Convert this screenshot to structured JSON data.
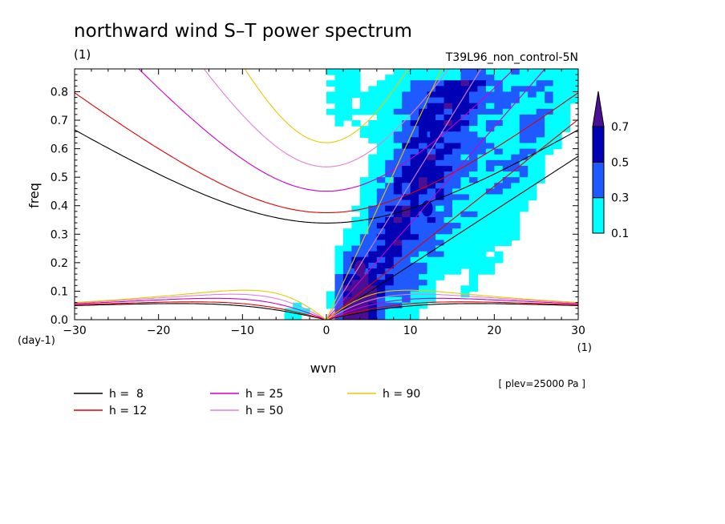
{
  "chart_data": {
    "type": "contour",
    "title": "northward wind S–T power spectrum",
    "units_label": "(1)",
    "experiment": "T39L96_non_control-5N",
    "xlabel": "wvn",
    "ylabel": "freq",
    "y_units": "(day-1)",
    "x_units": "(1)",
    "note": "[ plev=25000 Pa ]",
    "xlim": [
      -30,
      30
    ],
    "ylim": [
      0,
      0.88
    ],
    "x_ticks": [
      "−30",
      "−20",
      "−10",
      "0",
      "10",
      "20",
      "30"
    ],
    "x_tick_values": [
      -30,
      -20,
      -10,
      0,
      10,
      20,
      30
    ],
    "y_ticks": [
      "0.0",
      "0.1",
      "0.2",
      "0.3",
      "0.4",
      "0.5",
      "0.6",
      "0.7",
      "0.8"
    ],
    "y_tick_values": [
      0,
      0.1,
      0.2,
      0.3,
      0.4,
      0.5,
      0.6,
      0.7,
      0.8
    ],
    "contour_levels": [
      "0.1",
      "0.3",
      "0.5",
      "0.7"
    ],
    "level_colors": [
      "#00ffff",
      "#1e5aff",
      "#0000b4",
      "#4b0f96"
    ],
    "dispersion_curves": [
      {
        "label": "h =  8",
        "h": 8,
        "color": "#000000"
      },
      {
        "label": "h = 12",
        "h": 12,
        "color": "#e00000"
      },
      {
        "label": "h = 25",
        "h": 25,
        "color": "#d000c0"
      },
      {
        "label": "h = 50",
        "h": 50,
        "color": "#e080d8"
      },
      {
        "label": "h = 90",
        "h": 90,
        "color": "#e8c800"
      }
    ],
    "spectral_peaks": [
      {
        "wvn": 3,
        "freq": 0.05,
        "level": 3
      },
      {
        "wvn": 4,
        "freq": 0.18,
        "level": 3
      },
      {
        "wvn": 12,
        "freq": 0.39,
        "level": 2
      },
      {
        "wvn": 13,
        "freq": 0.65,
        "level": 2
      }
    ]
  }
}
